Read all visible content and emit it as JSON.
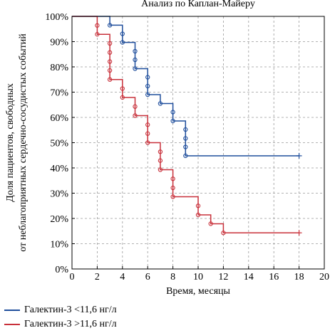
{
  "chart_data": {
    "type": "line",
    "subtype": "kaplan-meier step",
    "title": "Анализ по Каплан-Майеру",
    "xlabel": "Время, месяцы",
    "ylabel_line1": "Доля пациентов, свободных",
    "ylabel_line2": "от неблагоприятных сердечно-сосудистых событий",
    "xlim": [
      0,
      20
    ],
    "ylim": [
      0,
      100
    ],
    "xticks": [
      "0",
      "2",
      "4",
      "6",
      "8",
      "10",
      "12",
      "14",
      "16",
      "18",
      "20"
    ],
    "yticks": [
      "0%",
      "10%",
      "20%",
      "30%",
      "40%",
      "50%",
      "60%",
      "70%",
      "80%",
      "90%",
      "100%"
    ],
    "grid": true,
    "legend_position": "bottom-left",
    "series": [
      {
        "name": "Галектин-3 <11,6 нг/л",
        "color": "#1f4e9c",
        "steps": [
          [
            0,
            100
          ],
          [
            3,
            96.5
          ],
          [
            4,
            89.7
          ],
          [
            5,
            79.3
          ],
          [
            6,
            69
          ],
          [
            7,
            65.5
          ],
          [
            8,
            58.6
          ],
          [
            9,
            44.8
          ],
          [
            18,
            44.8
          ]
        ],
        "censored_x": [
          3,
          4,
          4,
          5,
          5,
          5,
          6,
          6,
          6,
          7,
          8,
          8,
          9,
          9,
          9,
          9,
          18
        ],
        "censored_y": [
          96.5,
          93.1,
          89.7,
          86.2,
          82.8,
          79.3,
          75.9,
          72.4,
          69,
          65.5,
          62.1,
          58.6,
          55.2,
          51.7,
          48.3,
          44.8,
          44.8
        ]
      },
      {
        "name": "Галектин-3 >11,6 нг/л",
        "color": "#c8303a",
        "steps": [
          [
            0,
            100
          ],
          [
            2,
            92.9
          ],
          [
            3,
            75
          ],
          [
            4,
            67.9
          ],
          [
            5,
            60.7
          ],
          [
            6,
            50
          ],
          [
            7,
            39.3
          ],
          [
            8,
            28.6
          ],
          [
            10,
            21.4
          ],
          [
            11,
            17.9
          ],
          [
            12,
            14.3
          ],
          [
            18,
            14.3
          ]
        ],
        "censored_x": [
          2,
          2,
          3,
          3,
          3,
          3,
          3,
          4,
          4,
          5,
          5,
          6,
          6,
          6,
          7,
          7,
          7,
          8,
          8,
          8,
          10,
          10,
          11,
          12,
          18
        ],
        "censored_y": [
          96.4,
          92.9,
          89.3,
          85.7,
          82.1,
          78.6,
          75,
          71.4,
          67.9,
          64.3,
          60.7,
          57.1,
          53.6,
          50,
          46.4,
          42.9,
          39.3,
          35.7,
          32.1,
          28.6,
          25,
          21.4,
          17.9,
          14.3,
          14.3
        ]
      }
    ]
  }
}
